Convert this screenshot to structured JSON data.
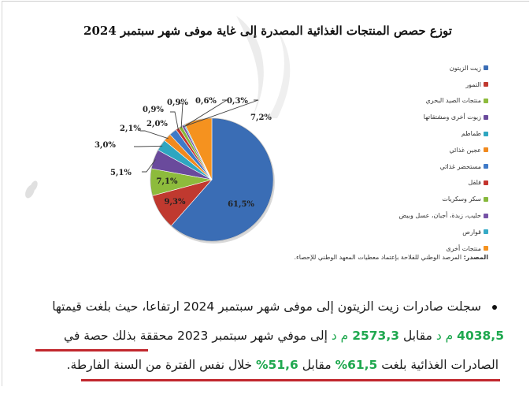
{
  "chart_data": {
    "type": "pie",
    "title": "توزع حصص المنتجات الغذائية المصدرة إلى غاية موفى شهر سبتمبر 2024",
    "start_angle_deg": 0,
    "direction": "clockwise",
    "slices": [
      {
        "label": "زيت الزيتون",
        "value": 61.5,
        "display": "61,5%",
        "color": "#3a6db5"
      },
      {
        "label": "التمور",
        "value": 9.3,
        "display": "9,3%",
        "color": "#c0392f"
      },
      {
        "label": "منتجات الصيد البحري",
        "value": 7.1,
        "display": "7,1%",
        "color": "#8dbb3c"
      },
      {
        "label": "زيوت أخرى ومشتقاتها",
        "value": 5.1,
        "display": "5,1%",
        "color": "#6a4a9c"
      },
      {
        "label": "طماطم",
        "value": 3.0,
        "display": "3,0%",
        "color": "#2fa6c0"
      },
      {
        "label": "عجين غذائي",
        "value": 2.1,
        "display": "2,1%",
        "color": "#f0891e"
      },
      {
        "label": "مستحضر غذائي",
        "value": 2.0,
        "display": "2,0%",
        "color": "#3f7ac8"
      },
      {
        "label": "فلفل",
        "value": 0.9,
        "display": "0,9%",
        "color": "#c4342e"
      },
      {
        "label": "سكر وسكريات",
        "value": 0.9,
        "display": "0,9%",
        "color": "#86b83b"
      },
      {
        "label": "حليب، زبدة، أجبان، عسل وبيض",
        "value": 0.6,
        "display": "0,6%",
        "color": "#7652a6"
      },
      {
        "label": "قوارص",
        "value": 0.3,
        "display": "0,3%",
        "color": "#35aac6"
      },
      {
        "label": "منتجات أخرى",
        "value": 7.2,
        "display": "7,2%",
        "color": "#f5921f"
      }
    ],
    "legend_position": "right",
    "source": "المصدر: المرصد الوطني للفلاحة بإعتماد معطيات المعهد الوطني للإحصاء."
  },
  "header": {
    "title": "توزع حصص المنتجات الغذائية المصدرة إلى غاية موفى شهر سبتمبر 2024"
  },
  "legend": {
    "items": [
      {
        "label": "زيت الزيتون",
        "color": "#3a6db5"
      },
      {
        "label": "التمور",
        "color": "#c0392f"
      },
      {
        "label": "منتجات الصيد البحري",
        "color": "#8dbb3c"
      },
      {
        "label": "زيوت أخرى ومشتقاتها",
        "color": "#6a4a9c"
      },
      {
        "label": "طماطم",
        "color": "#2fa6c0"
      },
      {
        "label": "عجين غذائي",
        "color": "#f0891e"
      },
      {
        "label": "مستحضر غذائي",
        "color": "#3f7ac8"
      },
      {
        "label": "فلفل",
        "color": "#c4342e"
      },
      {
        "label": "سكر وسكريات",
        "color": "#86b83b"
      },
      {
        "label": "حليب، زبدة، أجبان، عسل وبيض",
        "color": "#7652a6"
      },
      {
        "label": "قوارص",
        "color": "#35aac6"
      },
      {
        "label": "منتجات أخرى",
        "color": "#f5921f"
      }
    ]
  },
  "source": {
    "prefix": "المصدر:",
    "text": " المرصد الوطني للفلاحة بإعتماد معطيات المعهد الوطني للإحصاء."
  },
  "paragraph": {
    "line1": "سجلت صادرات زيت الزيتون إلى موفى شهر سبتمبر 2024 ارتفاعا، حيث بلغت قيمتها",
    "line2": {
      "v1": "4038,5",
      "u1": " م د ",
      "t1": "مقابل ",
      "v2": "2573,3",
      "u2": " م د ",
      "t2": "إلى موفي شهر سبتمبر 2023 محققة بذلك حصة في"
    },
    "line3": {
      "t1": "الصادرات الغذائية بلغت ",
      "p1": "61,5%",
      "t2": " مقابل ",
      "p2": "51,6%",
      "t3": " خلال نفس الفترة من السنة الفارطة."
    }
  },
  "colors": {
    "highlight_green": "#1fa84f",
    "underline_red": "#c1272d"
  }
}
